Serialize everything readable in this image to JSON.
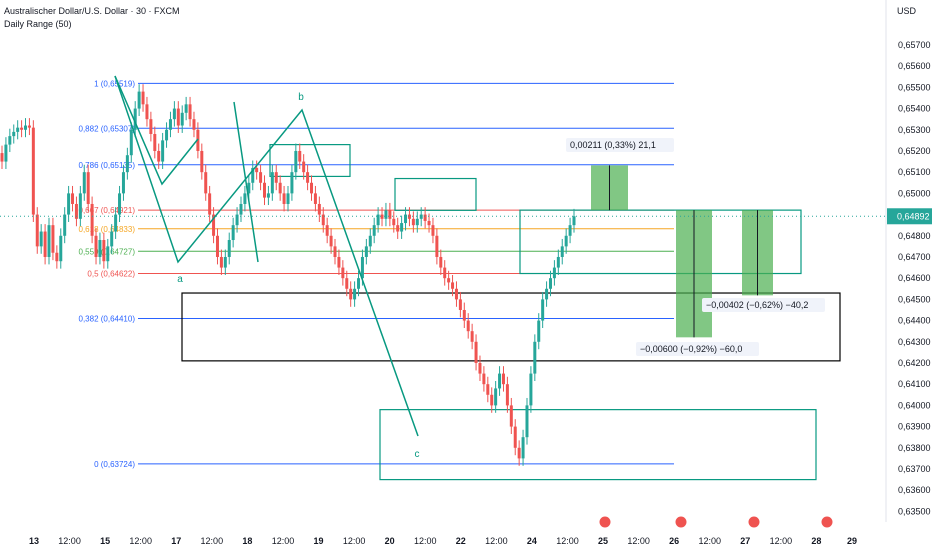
{
  "header": {
    "title": "Australischer Dollar/U.S. Dollar · 30 · FXCM",
    "indicator": "Daily Range (50)"
  },
  "currency": "USD",
  "colors": {
    "up": "#26a69a",
    "down": "#ef5350",
    "fib_blue": "#2962ff",
    "wave": "#089981",
    "box_black": "#000000",
    "projection_green": "#4caf50",
    "current_price_bg": "#26a69a"
  },
  "current_price": "0,64892",
  "chart_data": {
    "type": "candlestick",
    "ylim": [
      0.6345,
      0.6578
    ],
    "y_ticks": [
      "0,65700",
      "0,65600",
      "0,65500",
      "0,65400",
      "0,65300",
      "0,65200",
      "0,65100",
      "0,65000",
      "0,64900",
      "0,64800",
      "0,64700",
      "0,64600",
      "0,64500",
      "0,64400",
      "0,64300",
      "0,64200",
      "0,64100",
      "0,64000",
      "0,63900",
      "0,63800",
      "0,63700",
      "0,63600",
      "0,63500"
    ],
    "x_ticks": [
      "13",
      "12:00",
      "15",
      "12:00",
      "17",
      "12:00",
      "18",
      "12:00",
      "19",
      "12:00",
      "20",
      "12:00",
      "22",
      "12:00",
      "24",
      "12:00",
      "25",
      "12:00",
      "26",
      "12:00",
      "27",
      "12:00",
      "28",
      "29"
    ],
    "fib_levels": [
      {
        "label": "1 (0,65519)",
        "value": 0.65519,
        "color": "#2962ff"
      },
      {
        "label": "0,882 (0,65307)",
        "value": 0.65307,
        "color": "#2962ff"
      },
      {
        "label": "0,786 (0,65135)",
        "value": 0.65135,
        "color": "#2962ff"
      },
      {
        "label": "0,667 (0,64921)",
        "value": 0.64921,
        "color": "#ef5350"
      },
      {
        "label": "0,618 (0,64833)",
        "value": 0.64833,
        "color": "#f5a623"
      },
      {
        "label": "0,559 (0,64727)",
        "value": 0.64727,
        "color": "#4caf50"
      },
      {
        "label": "0,5 (0,64622)",
        "value": 0.64622,
        "color": "#ef5350"
      },
      {
        "label": "0,382 (0,64410)",
        "value": 0.6441,
        "color": "#2962ff"
      },
      {
        "label": "0 (0,63724)",
        "value": 0.63724,
        "color": "#2962ff"
      }
    ],
    "wave_labels": [
      "a",
      "b",
      "c"
    ],
    "measurements": [
      {
        "label": "0,00211 (0,33%) 21,1",
        "from": 0.64921,
        "to": 0.65132
      },
      {
        "label": "−0,00600 (−0,92%) −60,0",
        "from": 0.64921,
        "to": 0.64321
      },
      {
        "label": "−0,00402 (−0,62%) −40,2",
        "from": 0.64921,
        "to": 0.64519
      }
    ],
    "close": [
      0.6515,
      0.6523,
      0.6527,
      0.6529,
      0.6531,
      0.653,
      0.6532,
      0.6531,
      0.649,
      0.6475,
      0.6482,
      0.647,
      0.6485,
      0.6472,
      0.6468,
      0.648,
      0.649,
      0.65,
      0.6495,
      0.6488,
      0.65,
      0.651,
      0.6495,
      0.648,
      0.647,
      0.6478,
      0.6468,
      0.6475,
      0.6482,
      0.649,
      0.65,
      0.651,
      0.6518,
      0.653,
      0.654,
      0.6548,
      0.6542,
      0.6535,
      0.6528,
      0.652,
      0.6515,
      0.6525,
      0.653,
      0.6535,
      0.654,
      0.6532,
      0.6538,
      0.6542,
      0.6535,
      0.653,
      0.652,
      0.651,
      0.65,
      0.649,
      0.648,
      0.647,
      0.6465,
      0.647,
      0.6478,
      0.6485,
      0.649,
      0.6495,
      0.65,
      0.6505,
      0.6512,
      0.651,
      0.6505,
      0.6498,
      0.65,
      0.651,
      0.6505,
      0.65,
      0.6495,
      0.65,
      0.651,
      0.652,
      0.6515,
      0.651,
      0.6505,
      0.65,
      0.6495,
      0.649,
      0.6485,
      0.648,
      0.6475,
      0.647,
      0.6465,
      0.646,
      0.6455,
      0.645,
      0.6455,
      0.646,
      0.647,
      0.6475,
      0.648,
      0.6485,
      0.649,
      0.6488,
      0.6492,
      0.6488,
      0.6485,
      0.6482,
      0.6486,
      0.649,
      0.6488,
      0.6485,
      0.6488,
      0.649,
      0.6487,
      0.6485,
      0.648,
      0.647,
      0.6465,
      0.646,
      0.6458,
      0.6455,
      0.645,
      0.6445,
      0.644,
      0.6435,
      0.643,
      0.642,
      0.6415,
      0.641,
      0.6405,
      0.64,
      0.6408,
      0.6415,
      0.641,
      0.64,
      0.639,
      0.638,
      0.6375,
      0.6385,
      0.64,
      0.6415,
      0.643,
      0.644,
      0.645,
      0.6455,
      0.646,
      0.6465,
      0.647,
      0.6475,
      0.648,
      0.6485,
      0.64892
    ]
  }
}
